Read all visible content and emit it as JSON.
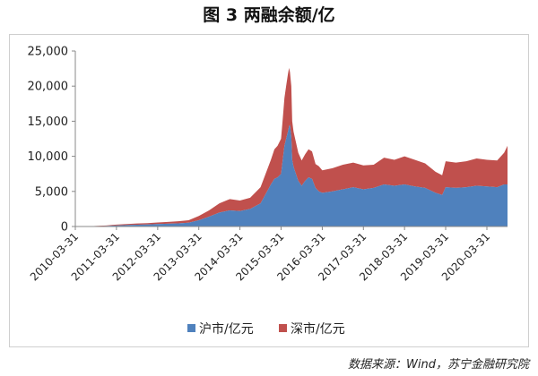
{
  "title": "图 3 两融余额/亿",
  "source": "数据来源：Wind，苏宁金融研究院",
  "chart_data": {
    "type": "area",
    "stacked": true,
    "ylim": [
      0,
      25000
    ],
    "yticks": [
      "0",
      "5,000",
      "10,000",
      "15,000",
      "20,000",
      "25,000"
    ],
    "x_range": [
      "2010-03-31",
      "2020-09-30"
    ],
    "xticks": [
      "2010-03-31",
      "2011-03-31",
      "2012-03-31",
      "2013-03-31",
      "2014-03-31",
      "2015-03-31",
      "2016-03-31",
      "2017-03-31",
      "2018-03-31",
      "2019-03-31",
      "2020-03-31"
    ],
    "grid": false,
    "legend_position": "bottom",
    "x": [
      "2010-03-31",
      "2010-06-30",
      "2010-09-30",
      "2010-12-31",
      "2011-03-31",
      "2011-06-30",
      "2011-09-30",
      "2011-12-31",
      "2012-03-31",
      "2012-06-30",
      "2012-09-30",
      "2012-12-31",
      "2013-03-31",
      "2013-06-30",
      "2013-09-30",
      "2013-12-31",
      "2014-03-31",
      "2014-06-30",
      "2014-09-30",
      "2014-12-31",
      "2015-01-31",
      "2015-02-28",
      "2015-03-31",
      "2015-04-15",
      "2015-04-30",
      "2015-05-15",
      "2015-05-31",
      "2015-06-10",
      "2015-06-18",
      "2015-06-30",
      "2015-07-08",
      "2015-07-20",
      "2015-08-10",
      "2015-08-31",
      "2015-09-30",
      "2015-10-31",
      "2015-11-30",
      "2015-12-31",
      "2016-01-31",
      "2016-02-29",
      "2016-03-31",
      "2016-06-30",
      "2016-09-30",
      "2016-12-31",
      "2017-03-31",
      "2017-06-30",
      "2017-09-30",
      "2017-12-31",
      "2018-03-31",
      "2018-06-30",
      "2018-09-30",
      "2018-12-31",
      "2019-02-28",
      "2019-03-31",
      "2019-06-30",
      "2019-09-30",
      "2019-12-31",
      "2020-03-31",
      "2020-06-30",
      "2020-08-31",
      "2020-09-30"
    ],
    "series": [
      {
        "name": "沪市/亿元",
        "color": "#4f81bd",
        "values": [
          0,
          5,
          50,
          80,
          150,
          200,
          250,
          280,
          350,
          400,
          450,
          550,
          900,
          1400,
          2000,
          2300,
          2200,
          2500,
          3300,
          6000,
          6800,
          7000,
          7500,
          9500,
          11500,
          12500,
          13500,
          14300,
          14500,
          12800,
          9500,
          8500,
          7500,
          6500,
          5800,
          6500,
          7000,
          6800,
          5500,
          5000,
          4800,
          5000,
          5300,
          5600,
          5300,
          5500,
          6000,
          5800,
          6000,
          5700,
          5500,
          4800,
          4500,
          5600,
          5500,
          5600,
          5800,
          5700,
          5600,
          6000,
          6000
        ]
      },
      {
        "name": "深市/亿元",
        "color": "#c0504d",
        "values": [
          0,
          3,
          30,
          60,
          120,
          150,
          180,
          200,
          220,
          250,
          300,
          350,
          600,
          900,
          1300,
          1600,
          1500,
          1600,
          2300,
          3500,
          4200,
          4500,
          5000,
          5800,
          6800,
          7500,
          8200,
          8300,
          7500,
          7200,
          5500,
          5000,
          4500,
          4000,
          3600,
          3800,
          4000,
          3900,
          3400,
          3600,
          3200,
          3300,
          3500,
          3500,
          3400,
          3300,
          3800,
          3700,
          4000,
          3800,
          3500,
          3000,
          2800,
          3700,
          3600,
          3700,
          3900,
          3800,
          3800,
          4500,
          5500
        ]
      }
    ]
  }
}
